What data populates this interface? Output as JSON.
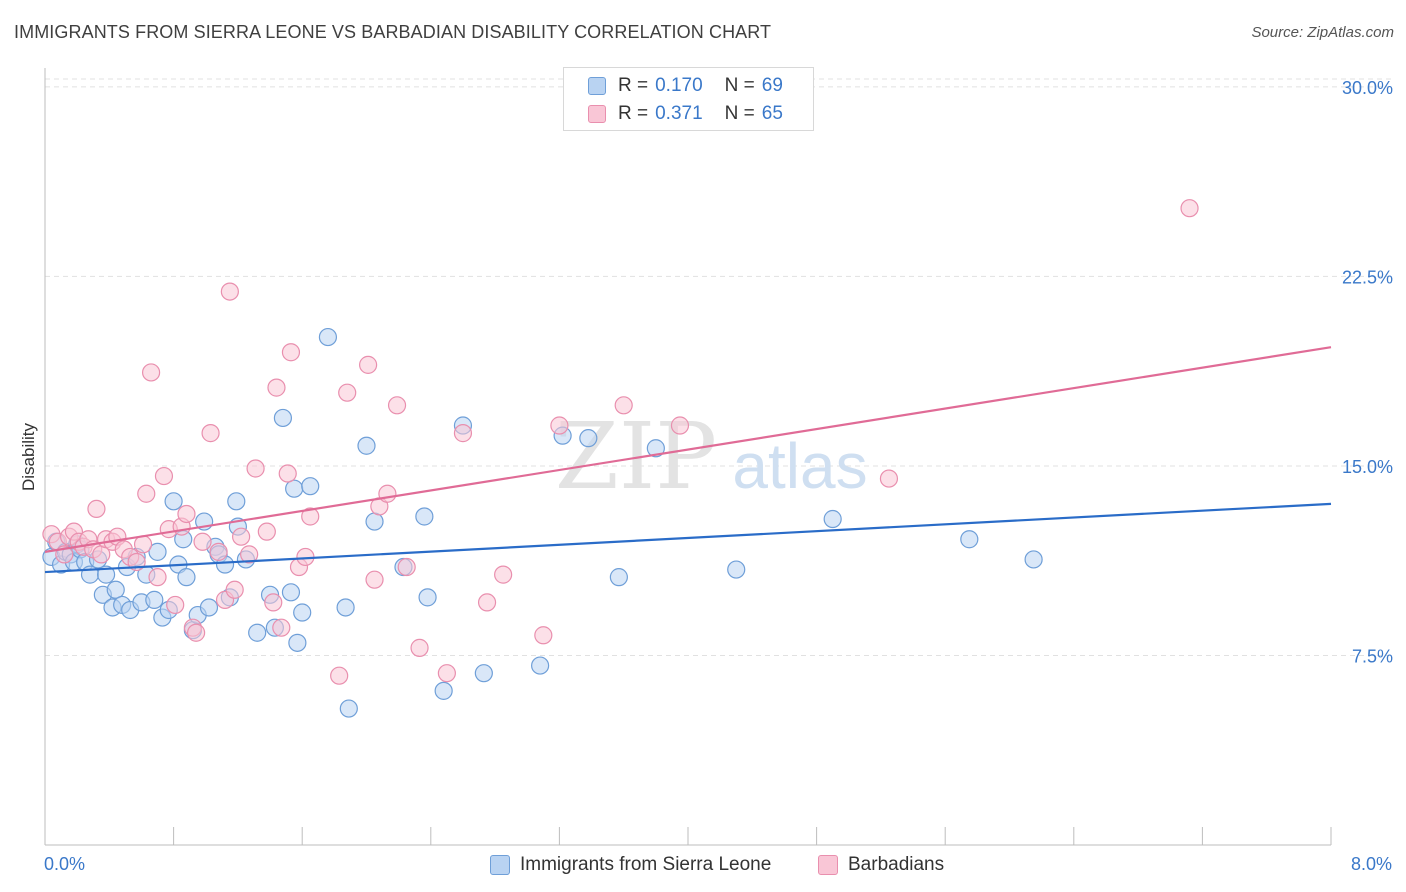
{
  "title": "IMMIGRANTS FROM SIERRA LEONE VS BARBADIAN DISABILITY CORRELATION CHART",
  "source": "Source: ZipAtlas.com",
  "watermark": {
    "zip": "ZIP",
    "atlas": "atlas"
  },
  "legend": {
    "r_label": "R =",
    "n_label": "N =",
    "rows": [
      {
        "r": "0.170",
        "n": "69",
        "fill": "#b9d3f2",
        "stroke": "#6f9fd8"
      },
      {
        "r": "0.371",
        "n": "65",
        "fill": "#f9c6d6",
        "stroke": "#e98fae"
      }
    ]
  },
  "bottom_legend": [
    {
      "label": "Immigrants from Sierra Leone",
      "fill": "#b9d3f2",
      "stroke": "#6f9fd8"
    },
    {
      "label": "Barbadians",
      "fill": "#f9c6d6",
      "stroke": "#e98fae"
    }
  ],
  "chart_data": {
    "type": "scatter",
    "title": "IMMIGRANTS FROM SIERRA LEONE VS BARBADIAN DISABILITY CORRELATION CHART",
    "xlabel": "",
    "ylabel": "Disability",
    "xlim": [
      0,
      8
    ],
    "ylim": [
      0,
      31.5
    ],
    "x_tick_labels": [
      {
        "value": 0,
        "label": "0.0%"
      },
      {
        "value": 8,
        "label": "8.0%"
      }
    ],
    "x_minor_ticks": [
      0.8,
      1.6,
      2.4,
      3.2,
      4.0,
      4.8,
      5.6,
      6.4,
      7.2,
      8.0
    ],
    "y_ticks": [
      {
        "value": 7.5,
        "label": "7.5%"
      },
      {
        "value": 15.0,
        "label": "15.0%"
      },
      {
        "value": 22.5,
        "label": "22.5%"
      },
      {
        "value": 30.0,
        "label": "30.0%"
      }
    ],
    "grid": true,
    "series": [
      {
        "name": "Immigrants from Sierra Leone",
        "color": "#6f9fd8",
        "fill": "#b9d3f2",
        "trend_color": "#2a6cc8",
        "trend": {
          "x0": 0,
          "y0": 10.8,
          "x1": 8,
          "y1": 13.5
        },
        "points": [
          [
            0.04,
            11.4
          ],
          [
            0.07,
            12.0
          ],
          [
            0.1,
            11.1
          ],
          [
            0.13,
            11.6
          ],
          [
            0.16,
            11.5
          ],
          [
            0.18,
            11.2
          ],
          [
            0.2,
            11.9
          ],
          [
            0.22,
            11.7
          ],
          [
            0.25,
            11.2
          ],
          [
            0.28,
            10.7
          ],
          [
            0.33,
            11.3
          ],
          [
            0.36,
            9.9
          ],
          [
            0.38,
            10.7
          ],
          [
            0.42,
            9.4
          ],
          [
            0.44,
            10.1
          ],
          [
            0.48,
            9.5
          ],
          [
            0.51,
            11.0
          ],
          [
            0.53,
            9.3
          ],
          [
            0.57,
            11.4
          ],
          [
            0.6,
            9.6
          ],
          [
            0.63,
            10.7
          ],
          [
            0.68,
            9.7
          ],
          [
            0.7,
            11.6
          ],
          [
            0.73,
            9.0
          ],
          [
            0.77,
            9.3
          ],
          [
            0.8,
            13.6
          ],
          [
            0.83,
            11.1
          ],
          [
            0.86,
            12.1
          ],
          [
            0.88,
            10.6
          ],
          [
            0.92,
            8.5
          ],
          [
            0.95,
            9.1
          ],
          [
            0.99,
            12.8
          ],
          [
            1.02,
            9.4
          ],
          [
            1.06,
            11.8
          ],
          [
            1.08,
            11.5
          ],
          [
            1.12,
            11.1
          ],
          [
            1.15,
            9.8
          ],
          [
            1.19,
            13.6
          ],
          [
            1.2,
            12.6
          ],
          [
            1.25,
            11.3
          ],
          [
            1.32,
            8.4
          ],
          [
            1.4,
            9.9
          ],
          [
            1.43,
            8.6
          ],
          [
            1.48,
            16.9
          ],
          [
            1.53,
            10.0
          ],
          [
            1.55,
            14.1
          ],
          [
            1.57,
            8.0
          ],
          [
            1.6,
            9.2
          ],
          [
            1.65,
            14.2
          ],
          [
            1.76,
            20.1
          ],
          [
            1.87,
            9.4
          ],
          [
            1.89,
            5.4
          ],
          [
            2.0,
            15.8
          ],
          [
            2.05,
            12.8
          ],
          [
            2.23,
            11.0
          ],
          [
            2.36,
            13.0
          ],
          [
            2.38,
            9.8
          ],
          [
            2.48,
            6.1
          ],
          [
            2.6,
            16.6
          ],
          [
            2.73,
            6.8
          ],
          [
            3.08,
            7.1
          ],
          [
            3.22,
            16.2
          ],
          [
            3.38,
            16.1
          ],
          [
            3.57,
            10.6
          ],
          [
            3.8,
            15.7
          ],
          [
            4.3,
            10.9
          ],
          [
            4.9,
            12.9
          ],
          [
            5.75,
            12.1
          ],
          [
            6.15,
            11.3
          ]
        ]
      },
      {
        "name": "Barbadians",
        "color": "#e98fae",
        "fill": "#f9c6d6",
        "trend_color": "#e06b96",
        "trend": {
          "x0": 0,
          "y0": 11.6,
          "x1": 8,
          "y1": 19.7
        },
        "points": [
          [
            0.04,
            12.3
          ],
          [
            0.08,
            12.0
          ],
          [
            0.12,
            11.5
          ],
          [
            0.15,
            12.2
          ],
          [
            0.18,
            12.4
          ],
          [
            0.21,
            12.0
          ],
          [
            0.24,
            11.8
          ],
          [
            0.27,
            12.1
          ],
          [
            0.3,
            11.7
          ],
          [
            0.32,
            13.3
          ],
          [
            0.35,
            11.5
          ],
          [
            0.38,
            12.1
          ],
          [
            0.42,
            12.0
          ],
          [
            0.45,
            12.2
          ],
          [
            0.49,
            11.7
          ],
          [
            0.53,
            11.4
          ],
          [
            0.57,
            11.2
          ],
          [
            0.61,
            11.9
          ],
          [
            0.63,
            13.9
          ],
          [
            0.66,
            18.7
          ],
          [
            0.7,
            10.6
          ],
          [
            0.74,
            14.6
          ],
          [
            0.77,
            12.5
          ],
          [
            0.81,
            9.5
          ],
          [
            0.85,
            12.6
          ],
          [
            0.88,
            13.1
          ],
          [
            0.92,
            8.6
          ],
          [
            0.94,
            8.4
          ],
          [
            0.98,
            12.0
          ],
          [
            1.03,
            16.3
          ],
          [
            1.08,
            11.6
          ],
          [
            1.12,
            9.7
          ],
          [
            1.15,
            21.9
          ],
          [
            1.18,
            10.1
          ],
          [
            1.22,
            12.2
          ],
          [
            1.27,
            11.5
          ],
          [
            1.31,
            14.9
          ],
          [
            1.38,
            12.4
          ],
          [
            1.42,
            9.6
          ],
          [
            1.44,
            18.1
          ],
          [
            1.47,
            8.6
          ],
          [
            1.51,
            14.7
          ],
          [
            1.53,
            19.5
          ],
          [
            1.58,
            11.0
          ],
          [
            1.62,
            11.4
          ],
          [
            1.65,
            13.0
          ],
          [
            1.83,
            6.7
          ],
          [
            1.88,
            17.9
          ],
          [
            2.01,
            19.0
          ],
          [
            2.05,
            10.5
          ],
          [
            2.08,
            13.4
          ],
          [
            2.13,
            13.9
          ],
          [
            2.19,
            17.4
          ],
          [
            2.25,
            11.0
          ],
          [
            2.33,
            7.8
          ],
          [
            2.5,
            6.8
          ],
          [
            2.6,
            16.3
          ],
          [
            2.75,
            9.6
          ],
          [
            2.85,
            10.7
          ],
          [
            3.1,
            8.3
          ],
          [
            3.2,
            16.6
          ],
          [
            3.6,
            17.4
          ],
          [
            3.95,
            16.6
          ],
          [
            5.25,
            14.5
          ],
          [
            7.12,
            25.2
          ]
        ]
      }
    ]
  }
}
